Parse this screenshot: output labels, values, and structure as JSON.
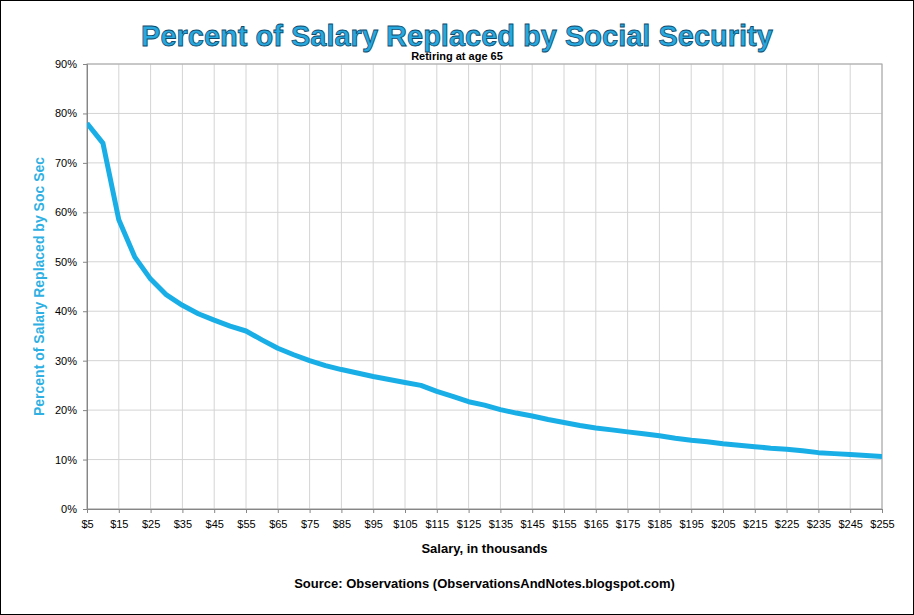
{
  "chart_data": {
    "type": "line",
    "title": "Percent of Salary Replaced by Social Security",
    "subtitle": "Retiring at age 65",
    "x_label": "Salary, in thousands",
    "y_label": "Percent of Salary Replaced by Soc Sec",
    "source": "Source: Observations (ObservationsAndNotes.blogspot.com)",
    "x": [
      5,
      10,
      15,
      20,
      25,
      30,
      35,
      40,
      45,
      50,
      55,
      60,
      65,
      70,
      75,
      80,
      85,
      90,
      95,
      100,
      105,
      110,
      115,
      120,
      125,
      130,
      135,
      140,
      145,
      150,
      155,
      160,
      165,
      170,
      175,
      180,
      185,
      190,
      195,
      200,
      205,
      210,
      215,
      220,
      225,
      230,
      235,
      240,
      245,
      250,
      255
    ],
    "values": [
      78,
      74,
      58.5,
      51,
      46.5,
      43.3,
      41.2,
      39.5,
      38.2,
      37,
      36,
      34.2,
      32.5,
      31.2,
      30,
      29,
      28.2,
      27.5,
      26.8,
      26.2,
      25.6,
      25,
      23.8,
      22.8,
      21.7,
      21,
      20.1,
      19.4,
      18.8,
      18.1,
      17.5,
      16.9,
      16.4,
      16,
      15.6,
      15.2,
      14.8,
      14.3,
      13.9,
      13.6,
      13.2,
      12.9,
      12.6,
      12.3,
      12.1,
      11.8,
      11.4,
      11.2,
      11,
      10.8,
      10.6
    ],
    "color": "#1aaee6",
    "xlim": [
      5,
      255
    ],
    "ylim": [
      0,
      90
    ],
    "xticks": [
      {
        "value": 5,
        "label": "$5"
      },
      {
        "value": 15,
        "label": "$15"
      },
      {
        "value": 25,
        "label": "$25"
      },
      {
        "value": 35,
        "label": "$35"
      },
      {
        "value": 45,
        "label": "$45"
      },
      {
        "value": 55,
        "label": "$55"
      },
      {
        "value": 65,
        "label": "$65"
      },
      {
        "value": 75,
        "label": "$75"
      },
      {
        "value": 85,
        "label": "$85"
      },
      {
        "value": 95,
        "label": "$95"
      },
      {
        "value": 105,
        "label": "$105"
      },
      {
        "value": 115,
        "label": "$115"
      },
      {
        "value": 125,
        "label": "$125"
      },
      {
        "value": 135,
        "label": "$135"
      },
      {
        "value": 145,
        "label": "$145"
      },
      {
        "value": 155,
        "label": "$155"
      },
      {
        "value": 165,
        "label": "$165"
      },
      {
        "value": 175,
        "label": "$175"
      },
      {
        "value": 185,
        "label": "$185"
      },
      {
        "value": 195,
        "label": "$195"
      },
      {
        "value": 205,
        "label": "$205"
      },
      {
        "value": 215,
        "label": "$215"
      },
      {
        "value": 225,
        "label": "$225"
      },
      {
        "value": 235,
        "label": "$235"
      },
      {
        "value": 245,
        "label": "$245"
      },
      {
        "value": 255,
        "label": "$255"
      }
    ],
    "yticks": [
      {
        "value": 0,
        "label": "0%"
      },
      {
        "value": 10,
        "label": "10%"
      },
      {
        "value": 20,
        "label": "20%"
      },
      {
        "value": 30,
        "label": "30%"
      },
      {
        "value": 40,
        "label": "40%"
      },
      {
        "value": 50,
        "label": "50%"
      },
      {
        "value": 60,
        "label": "60%"
      },
      {
        "value": 70,
        "label": "70%"
      },
      {
        "value": 80,
        "label": "80%"
      },
      {
        "value": 90,
        "label": "90%"
      }
    ],
    "grid": true
  }
}
